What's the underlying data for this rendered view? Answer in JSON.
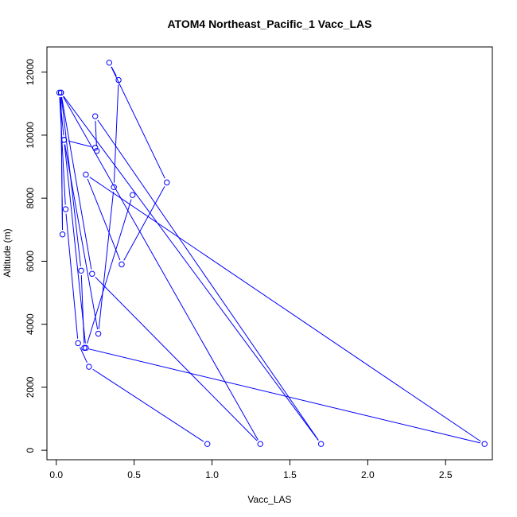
{
  "chart_data": {
    "type": "line",
    "title": "ATOM4 Northeast_Pacific_1 Vacc_LAS",
    "xlabel": "Vacc_LAS",
    "ylabel": "Altitude (m)",
    "xlim": [
      -0.06,
      2.8
    ],
    "ylim": [
      -300,
      12800
    ],
    "xticks": [
      0.0,
      0.5,
      1.0,
      1.5,
      2.0,
      2.5
    ],
    "xtick_labels": [
      "0.0",
      "0.5",
      "1.0",
      "1.5",
      "2.0",
      "2.5"
    ],
    "yticks": [
      0,
      2000,
      4000,
      6000,
      8000,
      10000,
      12000
    ],
    "ytick_labels": [
      "0",
      "2000",
      "4000",
      "6000",
      "8000",
      "10000",
      "12000"
    ],
    "grid": false,
    "series": [
      {
        "color": "#0000ff",
        "marker": "open-circle",
        "x": [
          0.97,
          0.21,
          0.14,
          0.06,
          0.02,
          0.05,
          0.25,
          0.26,
          0.25,
          1.7,
          0.03,
          0.04,
          0.03,
          0.23,
          1.31,
          0.03,
          0.16,
          0.18,
          2.75,
          0.19,
          0.42,
          0.71,
          0.34,
          0.4,
          0.37,
          0.27,
          0.05,
          0.19,
          0.49
        ],
        "y": [
          200,
          2650,
          3400,
          7650,
          11350,
          9850,
          9600,
          9500,
          10600,
          200,
          11350,
          6850,
          11350,
          5600,
          200,
          11350,
          5700,
          3250,
          200,
          8750,
          5900,
          8500,
          12300,
          11750,
          8350,
          3700,
          9850,
          3250,
          8100
        ]
      }
    ]
  }
}
